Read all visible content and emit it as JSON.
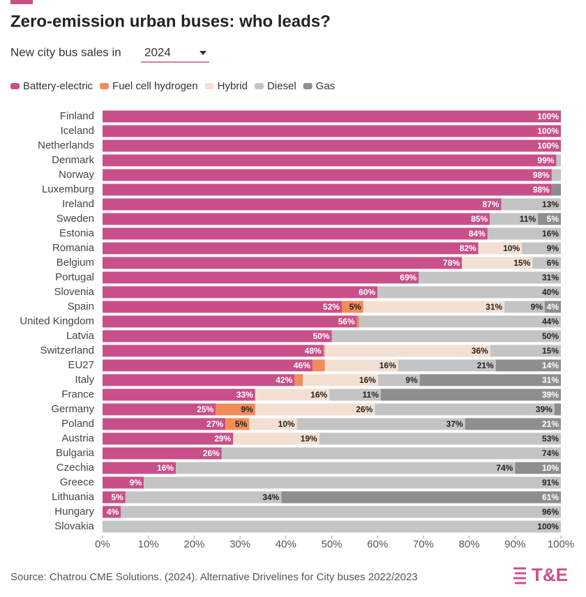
{
  "chart_data": {
    "type": "stacked-bar-horizontal",
    "title": "Zero-emission urban buses: who leads?",
    "filter_label": "New city bus sales in",
    "filter_value": "2024",
    "source": "Source: Chatrou CME Solutions. (2024). Alternative Drivelines for City buses 2022/2023",
    "logo": "T&E",
    "categories": [
      "Finland",
      "Iceland",
      "Netherlands",
      "Denmark",
      "Norway",
      "Luxemburg",
      "Ireland",
      "Sweden",
      "Estonia",
      "Romania",
      "Belgium",
      "Portugal",
      "Slovenia",
      "Spain",
      "United Kingdom",
      "Latvia",
      "Switzerland",
      "EU27",
      "Italy",
      "France",
      "Germany",
      "Poland",
      "Austria",
      "Bulgaria",
      "Czechia",
      "Greece",
      "Lithuania",
      "Hungary",
      "Slovakia"
    ],
    "series": [
      {
        "name": "Battery-electric",
        "color": "#c8508a",
        "label_color": "#ffffff",
        "values": [
          100,
          100,
          100,
          99,
          98,
          98,
          87,
          84.5,
          84,
          82,
          78.4,
          69,
          60,
          52.2,
          55.5,
          50,
          48.2,
          45.8,
          41.9,
          33.3,
          24.7,
          26.8,
          28.5,
          26,
          16,
          9,
          5,
          4,
          0
        ],
        "value_labels": [
          "100%",
          "100%",
          "100%",
          "99%",
          "98%",
          "98%",
          "87%",
          "85%",
          "84%",
          "82%",
          "78%",
          "69%",
          "60%",
          "52%",
          "56%",
          "50%",
          "48%",
          "46%",
          "42%",
          "33%",
          "25%",
          "27%",
          "29%",
          "26%",
          "16%",
          "9%",
          "5%",
          "4%",
          null
        ]
      },
      {
        "name": "Fuel cell hydrogen",
        "color": "#f28c58",
        "label_color": "#222222",
        "values": [
          0,
          0,
          0,
          0,
          0,
          0,
          0,
          0,
          0,
          0,
          0,
          0,
          0,
          4.7,
          0.5,
          0,
          0.3,
          2.7,
          1.8,
          0,
          8.6,
          5.2,
          0,
          0,
          0,
          0,
          0,
          0,
          0
        ],
        "value_labels": [
          null,
          null,
          null,
          null,
          null,
          null,
          null,
          null,
          null,
          null,
          null,
          null,
          null,
          "5%",
          null,
          null,
          null,
          null,
          null,
          null,
          "9%",
          "5%",
          null,
          null,
          null,
          null,
          null,
          null,
          null
        ]
      },
      {
        "name": "Hybrid",
        "color": "#f3e0d2",
        "label_color": "#222222",
        "values": [
          0,
          0,
          0,
          0,
          0,
          0,
          0,
          0,
          0,
          9.5,
          15.4,
          0,
          0,
          30.8,
          0,
          0,
          36.1,
          16,
          16.4,
          16.2,
          26.1,
          10.4,
          18.8,
          0,
          0,
          0,
          0,
          0,
          0
        ],
        "value_labels": [
          null,
          null,
          null,
          null,
          null,
          null,
          null,
          null,
          null,
          "10%",
          "15%",
          null,
          null,
          "31%",
          null,
          null,
          "36%",
          "16%",
          "16%",
          "16%",
          "26%",
          "10%",
          "19%",
          null,
          null,
          null,
          null,
          null,
          null
        ]
      },
      {
        "name": "Diesel",
        "color": "#c4c4c4",
        "label_color": "#222222",
        "values": [
          0,
          0,
          0,
          1,
          2,
          0,
          13,
          10.5,
          16,
          8.5,
          6.2,
          31,
          40,
          8.8,
          44,
          50,
          15.4,
          21.3,
          9.1,
          11.2,
          39.2,
          36.7,
          52.7,
          74,
          74,
          91,
          34,
          96,
          100
        ],
        "value_labels": [
          null,
          null,
          null,
          null,
          null,
          null,
          "13%",
          "11%",
          "16%",
          "9%",
          "6%",
          "31%",
          "40%",
          "9%",
          "44%",
          "50%",
          "15%",
          "21%",
          "9%",
          "11%",
          "39%",
          "37%",
          "53%",
          "74%",
          "74%",
          "91%",
          "34%",
          "96%",
          "100%"
        ]
      },
      {
        "name": "Gas",
        "color": "#8e8e8e",
        "label_color": "#ffffff",
        "values": [
          0,
          0,
          0,
          0,
          0,
          2,
          0,
          5,
          0,
          0,
          0,
          0,
          0,
          3.5,
          0,
          0,
          0,
          14.2,
          30.8,
          39.3,
          1.4,
          20.9,
          0,
          0,
          10,
          0,
          61,
          0,
          0
        ],
        "value_labels": [
          null,
          null,
          null,
          null,
          null,
          null,
          null,
          "5%",
          null,
          null,
          null,
          null,
          null,
          "4%",
          null,
          null,
          null,
          "14%",
          "31%",
          "39%",
          null,
          "21%",
          null,
          null,
          "10%",
          null,
          "61%",
          null,
          null
        ]
      }
    ],
    "xlim": [
      0,
      100
    ],
    "xticks": [
      {
        "value": 0,
        "label": "0%"
      },
      {
        "value": 10,
        "label": "10%"
      },
      {
        "value": 20,
        "label": "20%"
      },
      {
        "value": 30,
        "label": "30%"
      },
      {
        "value": 40,
        "label": "40%"
      },
      {
        "value": 50,
        "label": "50%"
      },
      {
        "value": 60,
        "label": "60%"
      },
      {
        "value": 70,
        "label": "70%"
      },
      {
        "value": 80,
        "label": "80%"
      },
      {
        "value": 90,
        "label": "90%"
      },
      {
        "value": 100,
        "label": "100%"
      }
    ]
  }
}
